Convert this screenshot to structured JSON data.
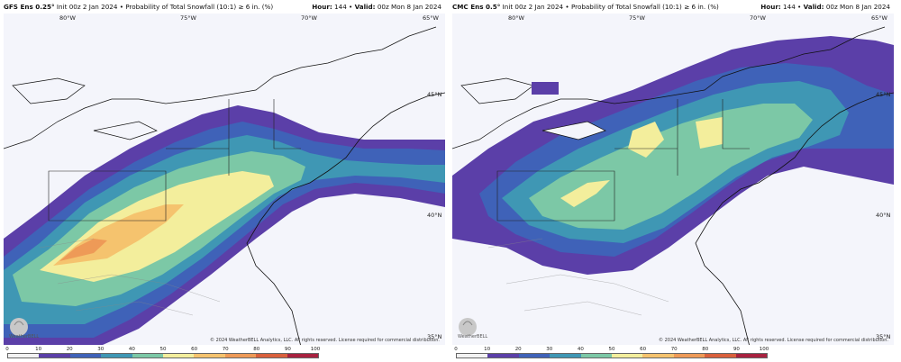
{
  "panels": [
    {
      "model": "GFS Ens 0.25°",
      "init_text": "Init 00z 2 Jan 2024 • Probability of Total Snowfall (10:1) ≥ 6 in. (%)",
      "hour_label": "Hour:",
      "hour_value": "144",
      "valid_label": "Valid:",
      "valid_value": "00z Mon 8 Jan 2024",
      "lon_labels": [
        "80°W",
        "75°W",
        "70°W",
        "65°W"
      ],
      "lat_labels": [
        "45°N",
        "40°N",
        "35°N"
      ],
      "copyright": "© 2024 WeatherBELL Analytics, LLC. All rights reserved. License required for commercial distribution.",
      "logo_text": "WeatherBELL"
    },
    {
      "model": "CMC Ens 0.5°",
      "init_text": "Init 00z 2 Jan 2024 • Probability of Total Snowfall (10:1) ≥ 6 in. (%)",
      "hour_label": "Hour:",
      "hour_value": "144",
      "valid_label": "Valid:",
      "valid_value": "00z Mon 8 Jan 2024",
      "lon_labels": [
        "80°W",
        "75°W",
        "70°W",
        "65°W"
      ],
      "lat_labels": [
        "45°N",
        "40°N",
        "35°N"
      ],
      "copyright": "© 2024 WeatherBELL Analytics, LLC. All rights reserved. License required for commercial distribution.",
      "logo_text": "WeatherBELL"
    }
  ],
  "colorbar": {
    "ticks": [
      "0",
      "10",
      "20",
      "30",
      "40",
      "50",
      "60",
      "70",
      "80",
      "90",
      "100"
    ],
    "colors": [
      "#f2f2f2",
      "#5b3fa8",
      "#3f62b8",
      "#3f97b4",
      "#7cc8a6",
      "#f3ee9c",
      "#f5c36e",
      "#ee9a57",
      "#d9603c",
      "#a8213f"
    ]
  }
}
